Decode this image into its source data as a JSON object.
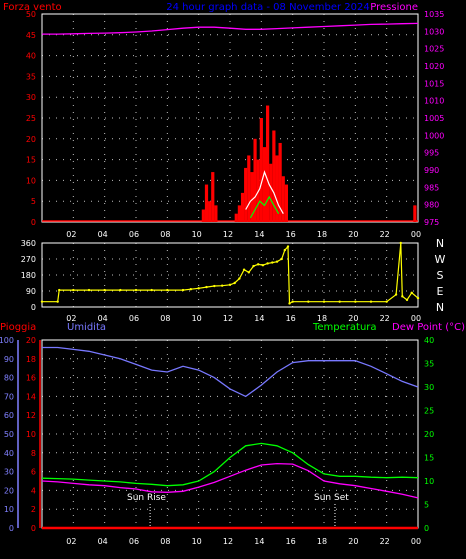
{
  "header": {
    "left_label": "Forza vento",
    "center_label": "24 hour graph data - 08 November 2024",
    "right_label": "Pressione"
  },
  "colors": {
    "wind": "#ff0000",
    "gust": "#ffffff",
    "avg_wind": "#00ff00",
    "pressure": "#ff00ff",
    "direction": "#ffff00",
    "rain": "#ff0000",
    "humidity": "#7878ff",
    "temperature": "#00ff00",
    "dewpoint": "#ff00ff",
    "frame": "#ffffff",
    "grid": "#ffffff",
    "left_axis": "#ff0000",
    "pressure_axis": "#ff00ff",
    "humidity_axis": "#8080ff",
    "temp_axis": "#00ff00"
  },
  "time_ticks": [
    "02",
    "04",
    "06",
    "08",
    "10",
    "12",
    "14",
    "16",
    "18",
    "20",
    "22",
    "00"
  ],
  "direction_labels": [
    "N",
    "W",
    "S",
    "E",
    "N"
  ],
  "bottom_labels": {
    "rain": "Pioggia",
    "humidity": "Umidita",
    "temperature": "Temperatura",
    "dewpoint": "Dew Point (°C)"
  },
  "annotations": {
    "sunrise": "Sun Rise",
    "sunset": "Sun Set"
  },
  "chart_data": [
    {
      "type": "line",
      "title": "",
      "x_unit": "hour",
      "x_range": [
        0,
        24
      ],
      "y_left": {
        "label": "Forza vento",
        "range": [
          0,
          50
        ],
        "ticks": [
          0,
          5,
          10,
          15,
          20,
          25,
          30,
          35,
          40,
          45,
          50
        ]
      },
      "y_right": {
        "label": "Pressione",
        "range": [
          975,
          1035
        ],
        "ticks": [
          975,
          980,
          985,
          990,
          995,
          1000,
          1005,
          1010,
          1015,
          1020,
          1025,
          1030,
          1035
        ]
      },
      "grid": true,
      "series": [
        {
          "name": "Pressione",
          "axis": "right",
          "x": [
            0,
            1,
            2,
            3,
            4,
            5,
            6,
            7,
            8,
            9,
            10,
            11,
            12,
            13,
            14,
            15,
            16,
            17,
            18,
            19,
            20,
            21,
            22,
            23,
            24
          ],
          "values": [
            1029.2,
            1029.2,
            1029.3,
            1029.4,
            1029.5,
            1029.6,
            1029.8,
            1030.1,
            1030.5,
            1030.9,
            1031.2,
            1031.2,
            1030.9,
            1030.6,
            1030.6,
            1030.8,
            1031.0,
            1031.2,
            1031.4,
            1031.6,
            1031.8,
            1032.0,
            1032.1,
            1032.2,
            1032.3
          ]
        },
        {
          "name": "",
          "axis": "left",
          "x": [
            10.3,
            10.5,
            10.7,
            10.9,
            11.1,
            12.4,
            12.6,
            12.8,
            13.0,
            13.2,
            13.4,
            13.6,
            13.8,
            14.0,
            14.2,
            14.4,
            14.6,
            14.8,
            15.0,
            15.2,
            15.4,
            15.6,
            23.8
          ],
          "values": [
            3,
            9,
            5,
            12,
            4,
            2,
            4,
            7,
            13,
            16,
            12,
            20,
            15,
            25,
            18,
            28,
            14,
            22,
            16,
            19,
            11,
            9,
            4
          ]
        },
        {
          "name": "",
          "axis": "left",
          "x": [
            13.0,
            13.3,
            13.6,
            13.9,
            14.2,
            14.5,
            14.8,
            15.1,
            15.4
          ],
          "values": [
            3,
            5,
            6,
            8,
            12,
            9,
            7,
            4,
            2
          ]
        },
        {
          "name": "",
          "axis": "left",
          "x": [
            13.3,
            13.6,
            13.9,
            14.2,
            14.5,
            14.8,
            15.1
          ],
          "values": [
            1,
            3,
            5,
            4,
            6,
            4,
            2
          ]
        }
      ]
    },
    {
      "type": "scatter",
      "title": "",
      "x_unit": "hour",
      "x_range": [
        0,
        24
      ],
      "y_range": [
        0,
        360
      ],
      "y_ticks": [
        0,
        90,
        180,
        270,
        360
      ],
      "grid": true,
      "series": [
        {
          "name": "",
          "x": [
            0,
            1,
            1.1,
            2,
            3,
            4,
            5,
            6,
            7,
            8,
            9,
            9.5,
            10,
            10.5,
            11,
            11.5,
            12,
            12.3,
            12.6,
            12.9,
            13.2,
            13.5,
            13.8,
            14.1,
            14.4,
            14.7,
            15.0,
            15.3,
            15.5,
            15.7,
            15.8,
            16,
            17,
            18,
            19,
            20,
            21,
            22,
            22.6,
            22.9,
            23.0,
            23.3,
            23.6,
            24
          ],
          "values": [
            30,
            30,
            95,
            95,
            95,
            95,
            95,
            95,
            95,
            95,
            95,
            100,
            105,
            112,
            118,
            120,
            125,
            135,
            160,
            210,
            195,
            230,
            240,
            235,
            245,
            250,
            255,
            270,
            320,
            340,
            20,
            30,
            30,
            30,
            30,
            30,
            30,
            30,
            70,
            360,
            60,
            40,
            80,
            50
          ]
        }
      ]
    },
    {
      "type": "line",
      "title": "",
      "x_unit": "hour",
      "x_range": [
        0,
        24
      ],
      "y_rain": {
        "label": "Pioggia",
        "range": [
          0,
          20
        ],
        "ticks": [
          0,
          2,
          4,
          6,
          8,
          10,
          12,
          14,
          16,
          18,
          20
        ]
      },
      "y_humidity": {
        "label": "Umidita",
        "range": [
          0,
          100
        ],
        "ticks": [
          0,
          10,
          20,
          30,
          40,
          50,
          60,
          70,
          80,
          90,
          100
        ]
      },
      "y_temp": {
        "label": "Temperatura / Dew Point (°C)",
        "range": [
          0,
          40
        ],
        "ticks": [
          0,
          5,
          10,
          15,
          20,
          25,
          30,
          35,
          40
        ]
      },
      "grid": true,
      "series": [
        {
          "name": "Umidita",
          "axis": "humidity",
          "x": [
            0,
            1,
            2,
            3,
            4,
            5,
            6,
            7,
            8,
            9,
            10,
            11,
            12,
            13,
            14,
            15,
            16,
            17,
            18,
            19,
            20,
            21,
            22,
            23,
            24
          ],
          "values": [
            96,
            96,
            95,
            94,
            92,
            90,
            87,
            84,
            83,
            86,
            84,
            80,
            74,
            70,
            76,
            83,
            88,
            89,
            89,
            89,
            89,
            86,
            82,
            78,
            75
          ]
        },
        {
          "name": "Temperatura",
          "axis": "temp",
          "x": [
            0,
            1,
            2,
            3,
            4,
            5,
            6,
            7,
            8,
            9,
            10,
            11,
            12,
            13,
            14,
            15,
            16,
            17,
            18,
            19,
            20,
            21,
            22,
            23,
            24
          ],
          "values": [
            10.6,
            10.5,
            10.4,
            10.2,
            10.0,
            9.8,
            9.5,
            9.3,
            9.0,
            9.2,
            10.0,
            12.0,
            15.0,
            17.5,
            18.0,
            17.5,
            16.0,
            13.5,
            11.5,
            11.0,
            11.0,
            10.8,
            10.7,
            10.8,
            10.7
          ]
        },
        {
          "name": "Dew Point (°C)",
          "axis": "temp",
          "x": [
            0,
            1,
            2,
            3,
            4,
            5,
            6,
            7,
            8,
            9,
            10,
            11,
            12,
            13,
            14,
            15,
            16,
            17,
            18,
            19,
            20,
            21,
            22,
            23,
            24
          ],
          "values": [
            10.0,
            9.8,
            9.5,
            9.2,
            9.0,
            8.6,
            8.3,
            7.7,
            7.6,
            7.8,
            8.7,
            9.7,
            11.0,
            12.3,
            13.4,
            13.7,
            13.6,
            12.2,
            10.0,
            9.4,
            9.0,
            8.4,
            7.8,
            7.2,
            6.4
          ]
        },
        {
          "name": "Pioggia",
          "axis": "rain",
          "x": [
            0,
            24
          ],
          "values": [
            0,
            0
          ]
        }
      ],
      "markers": [
        {
          "label": "Sun Rise",
          "x": 6.9
        },
        {
          "label": "Sun Set",
          "x": 18.7
        }
      ]
    }
  ]
}
